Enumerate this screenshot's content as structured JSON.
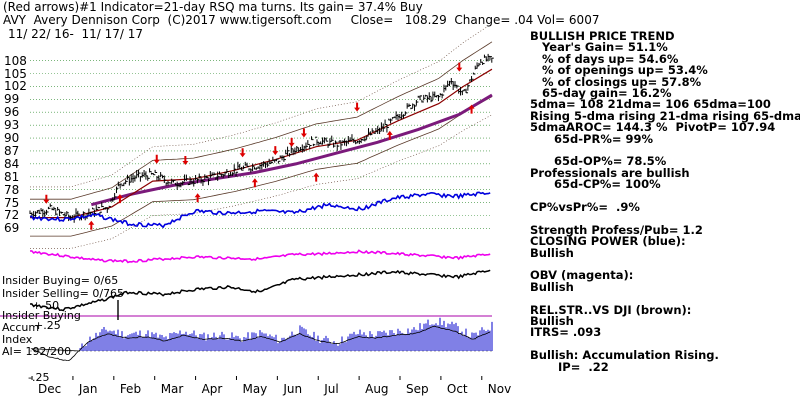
{
  "header": {
    "line1": "(Red arrows)#1 Indicator=21-day RSQ ma turns. Its gain= 37.4% Buy",
    "line2": "AVY  Avery Dennison Corp  (C)2017 www.tigersoft.com     Close=   108.29  Change= .04 Vol= 6007",
    "line3": "11/ 22/ 16-  11/ 17/ 17"
  },
  "sidebar": [
    "BULLISH PRICE TREND",
    "   Year's Gain= 51.1%",
    "   % of days up= 54.6%",
    "   % of openings up= 53.4%",
    "   % of closings up= 57.8%",
    "   65-day gain= 16.2%",
    "5dma= 108 21dma= 106 65dma=100",
    "Rising 5-dma rising 21-dma rising 65-dma",
    "5dmaAROC= 144.3 %  PivotP= 107.94",
    "      65d-PR%= 99%",
    "",
    "      65d-OP%= 78.5%",
    "Professionals are bullish",
    "      65d-CP%= 100%",
    "",
    "CP%vsPr%=  .9%",
    "",
    "Strength Profess/Pub= 1.2",
    "CLOSING POWER (blue):",
    "Bullish",
    "",
    "OBV (magenta):",
    "Bullish",
    "",
    "REL.STR..VS DJI (brown):",
    "Bullish",
    "ITRS= .093",
    "",
    "Bullish: Accumulation Rising.",
    "       IP=  .22"
  ],
  "panel_labels": {
    "insider_buying": "Insider Buying= 0/65",
    "insider_selling": "Insider Selling= 0/765",
    "minus50": "+-50",
    "insider_buying2": "Insider Buying",
    "accum": "Accum",
    "index": "Index",
    "ai": "AI= 192/200",
    "plus25": "+.25",
    "minus25": "-.25"
  },
  "colors": {
    "price_bars": "#000000",
    "ma21": "#8b0000",
    "ma65": "#7b1a7b",
    "bands": "#5a3a2a",
    "grid": "#2e8b2e",
    "closing_power": "#0000dd",
    "obv": "#ee00ee",
    "relstr": "#000000",
    "accum": "#0000cc",
    "accum_neg": "#cc0000",
    "arrows": "#dd0000",
    "insider_line": "#aa00aa"
  },
  "chart_data": {
    "type": "line",
    "title": "AVY  Avery Dennison Corp",
    "y_ticks": [
      108,
      105,
      102,
      99,
      96,
      93,
      90,
      87,
      84,
      81,
      78,
      75,
      72,
      69
    ],
    "x_months": [
      "Dec",
      "Jan",
      "Feb",
      "Mar",
      "Apr",
      "May",
      "Jun",
      "Jul",
      "Aug",
      "Sep",
      "Oct",
      "Nov"
    ],
    "ylim": [
      67,
      110
    ],
    "price_points": [
      {
        "x": 0,
        "y": 72.5
      },
      {
        "x": 0.5,
        "y": 73.5
      },
      {
        "x": 1,
        "y": 71.5
      },
      {
        "x": 1.4,
        "y": 72.5
      },
      {
        "x": 1.9,
        "y": 74
      },
      {
        "x": 2.2,
        "y": 79.5
      },
      {
        "x": 2.6,
        "y": 81
      },
      {
        "x": 3,
        "y": 81.5
      },
      {
        "x": 3.5,
        "y": 79.5
      },
      {
        "x": 4,
        "y": 80
      },
      {
        "x": 4.5,
        "y": 81
      },
      {
        "x": 5,
        "y": 82.5
      },
      {
        "x": 5.5,
        "y": 83.5
      },
      {
        "x": 6,
        "y": 84.5
      },
      {
        "x": 6.5,
        "y": 87.5
      },
      {
        "x": 7,
        "y": 89.5
      },
      {
        "x": 7.5,
        "y": 88.5
      },
      {
        "x": 8,
        "y": 89.5
      },
      {
        "x": 8.5,
        "y": 91.5
      },
      {
        "x": 9,
        "y": 95
      },
      {
        "x": 9.5,
        "y": 99
      },
      {
        "x": 10,
        "y": 99.5
      },
      {
        "x": 10.3,
        "y": 103.5
      },
      {
        "x": 10.6,
        "y": 100
      },
      {
        "x": 11,
        "y": 108
      },
      {
        "x": 11.3,
        "y": 108.3
      }
    ],
    "ma21_points": [
      {
        "x": 0,
        "y": 71.5
      },
      {
        "x": 1,
        "y": 71.5
      },
      {
        "x": 2,
        "y": 74
      },
      {
        "x": 3,
        "y": 80
      },
      {
        "x": 4,
        "y": 80.5
      },
      {
        "x": 5,
        "y": 82.5
      },
      {
        "x": 6,
        "y": 85
      },
      {
        "x": 7,
        "y": 88
      },
      {
        "x": 8,
        "y": 89.5
      },
      {
        "x": 9,
        "y": 94
      },
      {
        "x": 10,
        "y": 98
      },
      {
        "x": 10.6,
        "y": 102
      },
      {
        "x": 11.3,
        "y": 106
      }
    ],
    "ma65_points": [
      {
        "x": 1.5,
        "y": 74.5
      },
      {
        "x": 2.5,
        "y": 77
      },
      {
        "x": 3.5,
        "y": 79
      },
      {
        "x": 4.5,
        "y": 80.5
      },
      {
        "x": 5.5,
        "y": 82
      },
      {
        "x": 6.5,
        "y": 84
      },
      {
        "x": 7.5,
        "y": 86.5
      },
      {
        "x": 8.5,
        "y": 89
      },
      {
        "x": 9.5,
        "y": 92
      },
      {
        "x": 10.5,
        "y": 95.5
      },
      {
        "x": 11.3,
        "y": 100
      }
    ],
    "red_arrows": [
      {
        "x": 0.4,
        "y": 75.2,
        "dir": "down"
      },
      {
        "x": 1.5,
        "y": 70.3,
        "dir": "up"
      },
      {
        "x": 2.2,
        "y": 76.5,
        "dir": "up"
      },
      {
        "x": 3.1,
        "y": 84.5,
        "dir": "down"
      },
      {
        "x": 3.8,
        "y": 84.2,
        "dir": "down"
      },
      {
        "x": 4.1,
        "y": 76.7,
        "dir": "up"
      },
      {
        "x": 5.2,
        "y": 86.0,
        "dir": "down"
      },
      {
        "x": 5.5,
        "y": 80.2,
        "dir": "up"
      },
      {
        "x": 6.0,
        "y": 86.5,
        "dir": "down"
      },
      {
        "x": 6.4,
        "y": 88.4,
        "dir": "down"
      },
      {
        "x": 6.7,
        "y": 90.6,
        "dir": "down"
      },
      {
        "x": 7.0,
        "y": 81.5,
        "dir": "up"
      },
      {
        "x": 8.0,
        "y": 96.6,
        "dir": "down"
      },
      {
        "x": 8.8,
        "y": 91.2,
        "dir": "up"
      },
      {
        "x": 10.5,
        "y": 105.9,
        "dir": "down"
      },
      {
        "x": 10.8,
        "y": 97.3,
        "dir": "up"
      }
    ],
    "closing_power": [
      0.7,
      0.75,
      0.65,
      0.85,
      0.9,
      0.55,
      0.6,
      0.55,
      0.6,
      0.4,
      0.5,
      0.25,
      0.15,
      0.2,
      0.1
    ],
    "obv": [
      0.2,
      0.4,
      0.6,
      0.65,
      0.55,
      0.45,
      0.5,
      0.55,
      0.35,
      0.3,
      0.2,
      0.3,
      0.4,
      0.5,
      0.3
    ],
    "relstr": [
      0.85,
      0.95,
      0.8,
      0.6,
      0.65,
      0.55,
      0.5,
      0.6,
      0.35,
      0.3,
      0.25,
      0.2,
      0.25,
      0.3,
      0.15
    ],
    "accumulation": [
      0.1,
      -0.2,
      -0.35,
      0.3,
      0.6,
      0.45,
      0.5,
      0.35,
      0.55,
      0.4,
      0.45,
      0.35,
      0.5,
      0.3,
      0.6,
      0.35,
      0.25,
      0.5,
      0.45,
      0.55,
      0.6,
      0.85,
      0.7,
      0.4,
      0.7
    ]
  }
}
